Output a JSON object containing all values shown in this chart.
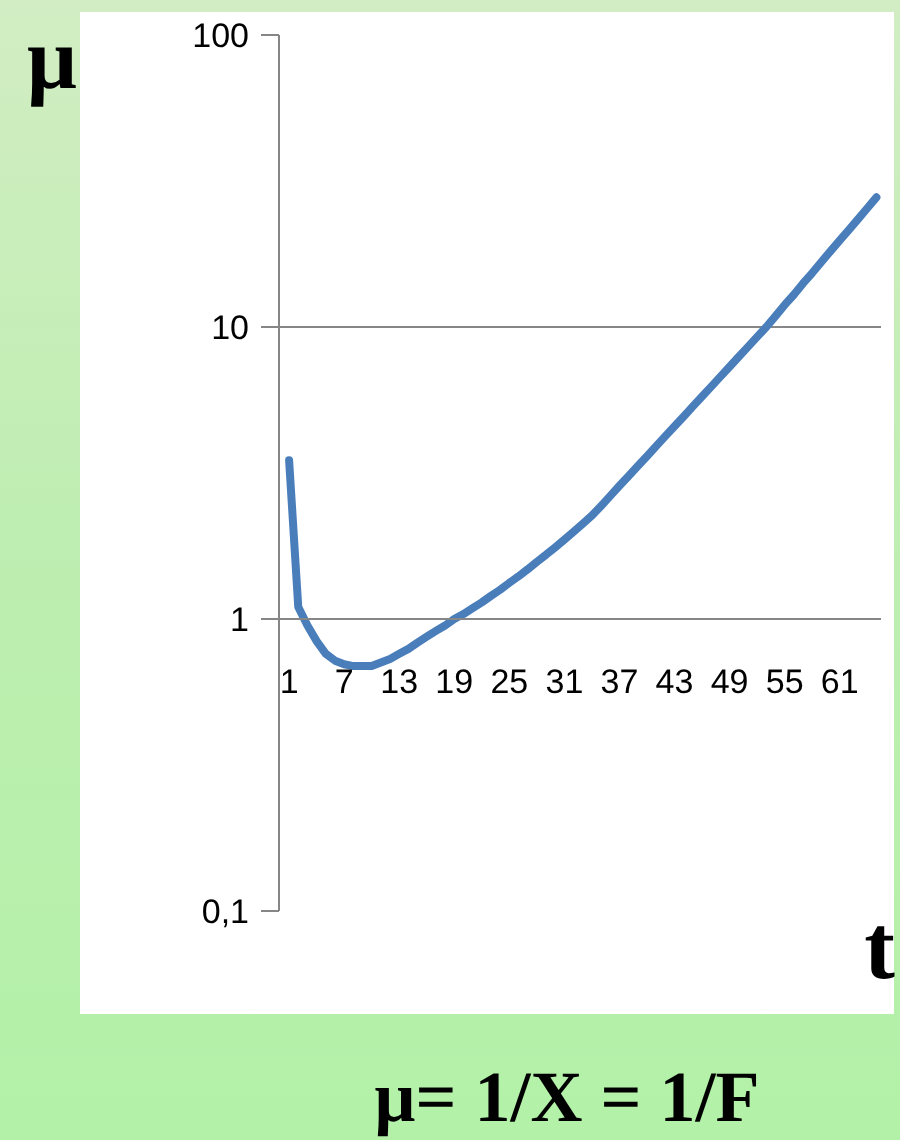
{
  "chart_data": {
    "type": "line",
    "categories": [
      "1",
      null,
      null,
      null,
      null,
      null,
      "7",
      null,
      null,
      null,
      null,
      null,
      "13",
      null,
      null,
      null,
      null,
      null,
      "19",
      null,
      null,
      null,
      null,
      null,
      "25",
      null,
      null,
      null,
      null,
      null,
      "31",
      null,
      null,
      null,
      null,
      null,
      "37",
      null,
      null,
      null,
      null,
      null,
      "43",
      null,
      null,
      null,
      null,
      null,
      "49",
      null,
      null,
      null,
      null,
      null,
      "55",
      null,
      null,
      null,
      null,
      null,
      "61",
      null,
      null,
      null,
      null
    ],
    "values": [
      3.5,
      1.1,
      0.95,
      0.84,
      0.76,
      0.72,
      0.7,
      0.69,
      0.69,
      0.69,
      0.71,
      0.73,
      0.76,
      0.79,
      0.83,
      0.87,
      0.91,
      0.95,
      1.0,
      1.04,
      1.09,
      1.14,
      1.2,
      1.26,
      1.33,
      1.4,
      1.48,
      1.57,
      1.66,
      1.76,
      1.87,
      1.99,
      2.12,
      2.26,
      2.44,
      2.64,
      2.86,
      3.09,
      3.34,
      3.61,
      3.91,
      4.23,
      4.57,
      4.94,
      5.35,
      5.78,
      6.25,
      6.76,
      7.31,
      7.91,
      8.55,
      9.25,
      10,
      10.9,
      11.9,
      12.9,
      14.1,
      15.3,
      16.7,
      18.2,
      19.8,
      21.5,
      23.4,
      25.5,
      27.8
    ],
    "color": "#4a7ebb",
    "line_style": "solid",
    "xlabel": "t",
    "ylabel": "μ",
    "ylim": [
      0.1,
      100
    ],
    "yticks": [
      {
        "value": 0.1,
        "label": "0,1"
      },
      1,
      10,
      100
    ],
    "log": "y",
    "grid": "y",
    "annotations": [
      "μ= 1/X = 1/F"
    ]
  }
}
